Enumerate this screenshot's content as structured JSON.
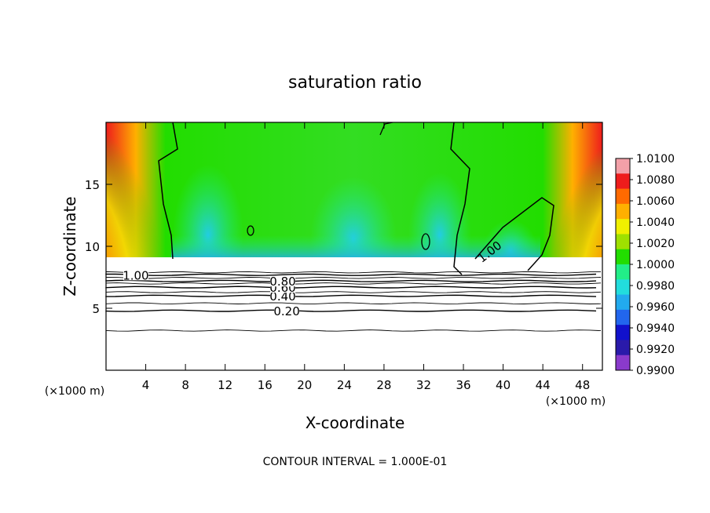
{
  "chart_data": {
    "type": "heatmap",
    "title": "saturation ratio",
    "xlabel": "X-coordinate",
    "ylabel": "Z-coordinate",
    "x_unit": "(×1000 m)",
    "xlim": [
      0,
      50
    ],
    "ylim": [
      0,
      20
    ],
    "x_ticks": [
      4,
      8,
      12,
      16,
      20,
      24,
      28,
      32,
      36,
      40,
      44,
      48
    ],
    "y_ticks": [
      5,
      10,
      15
    ],
    "footer": "CONTOUR INTERVAL = 1.000E-01",
    "colorbar": {
      "min": 0.99,
      "max": 1.01,
      "labels": [
        "1.0100",
        "1.0080",
        "1.0060",
        "1.0040",
        "1.0020",
        "1.0000",
        "0.9980",
        "0.9960",
        "0.9940",
        "0.9920",
        "0.9900"
      ],
      "colors": [
        "#f2a0a8",
        "#ee1c1c",
        "#ff6a00",
        "#ffb000",
        "#f0f000",
        "#9fe000",
        "#22dd00",
        "#22ee88",
        "#22dddd",
        "#22aaee",
        "#2266ee",
        "#1111cc",
        "#2a1aaa",
        "#8a3acc",
        "#ffffff"
      ]
    },
    "contours": [
      {
        "level": 0.2,
        "z": 4.8,
        "label": "0.20",
        "label_x": 18.2
      },
      {
        "level": 0.4,
        "z": 6.0,
        "label": "0.40",
        "label_x": 17.8
      },
      {
        "level": 0.6,
        "z": 6.7,
        "label": "0.60",
        "label_x": 17.8
      },
      {
        "level": 0.8,
        "z": 7.2,
        "label": "0.80",
        "label_x": 17.8
      },
      {
        "level": 1.0,
        "z": 7.7,
        "label": "1.00",
        "label_x": 3.0
      },
      {
        "level": 1.0,
        "label": "1.00",
        "label_x": 38.6,
        "label_z": 9.6
      }
    ]
  }
}
